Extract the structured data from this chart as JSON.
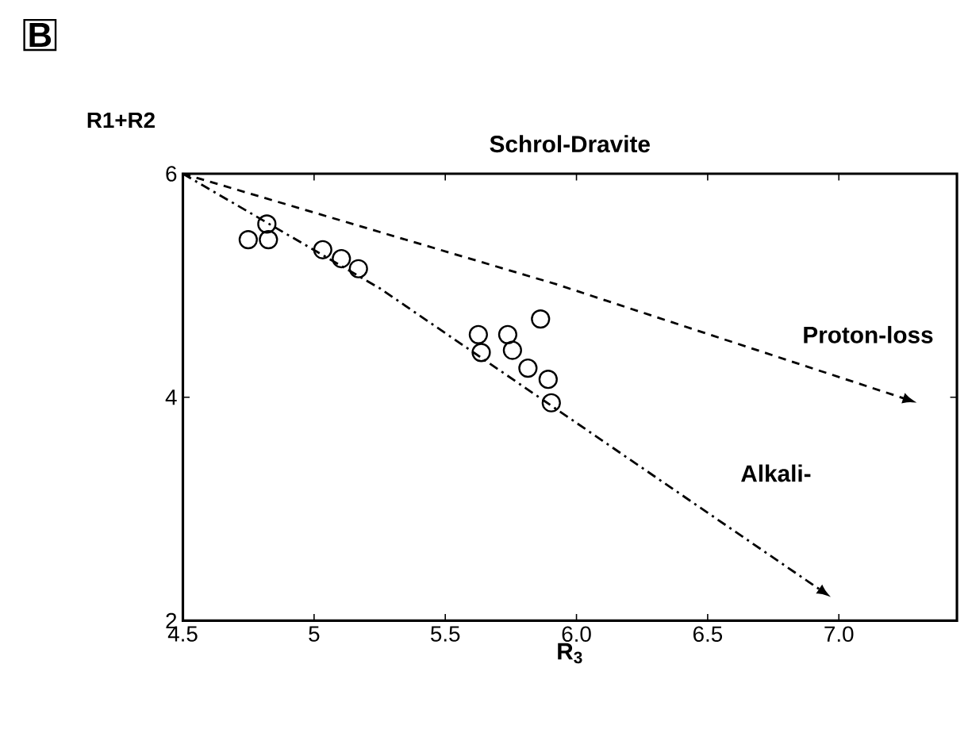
{
  "chart_data": {
    "type": "scatter",
    "title": "Schrol-Dravite",
    "xlabel": "R$_{3}$",
    "ylabel": "R1+R2",
    "xlim": [
      4.5,
      7.45
    ],
    "ylim": [
      2,
      6
    ],
    "xticks": [
      4.5,
      5,
      5.5,
      {
        "value": 6,
        "label": "6.0"
      },
      6.5,
      {
        "value": 7,
        "label": "7.0"
      }
    ],
    "yticks": [
      2,
      4,
      6
    ],
    "grid": false,
    "series": [
      {
        "marker": "circle",
        "color": "#000000",
        "x": [
          4.749,
          4.826,
          4.82,
          5.033,
          5.104,
          5.169,
          5.863,
          5.626,
          5.738,
          5.637,
          5.756,
          5.815,
          5.892,
          5.904
        ],
        "values": [
          5.41,
          5.41,
          5.55,
          5.32,
          5.24,
          5.15,
          4.7,
          4.56,
          4.56,
          4.4,
          4.42,
          4.26,
          4.16,
          3.95
        ]
      }
    ],
    "annotations": [
      "B",
      "Proton-loss",
      "Alkali-"
    ]
  }
}
